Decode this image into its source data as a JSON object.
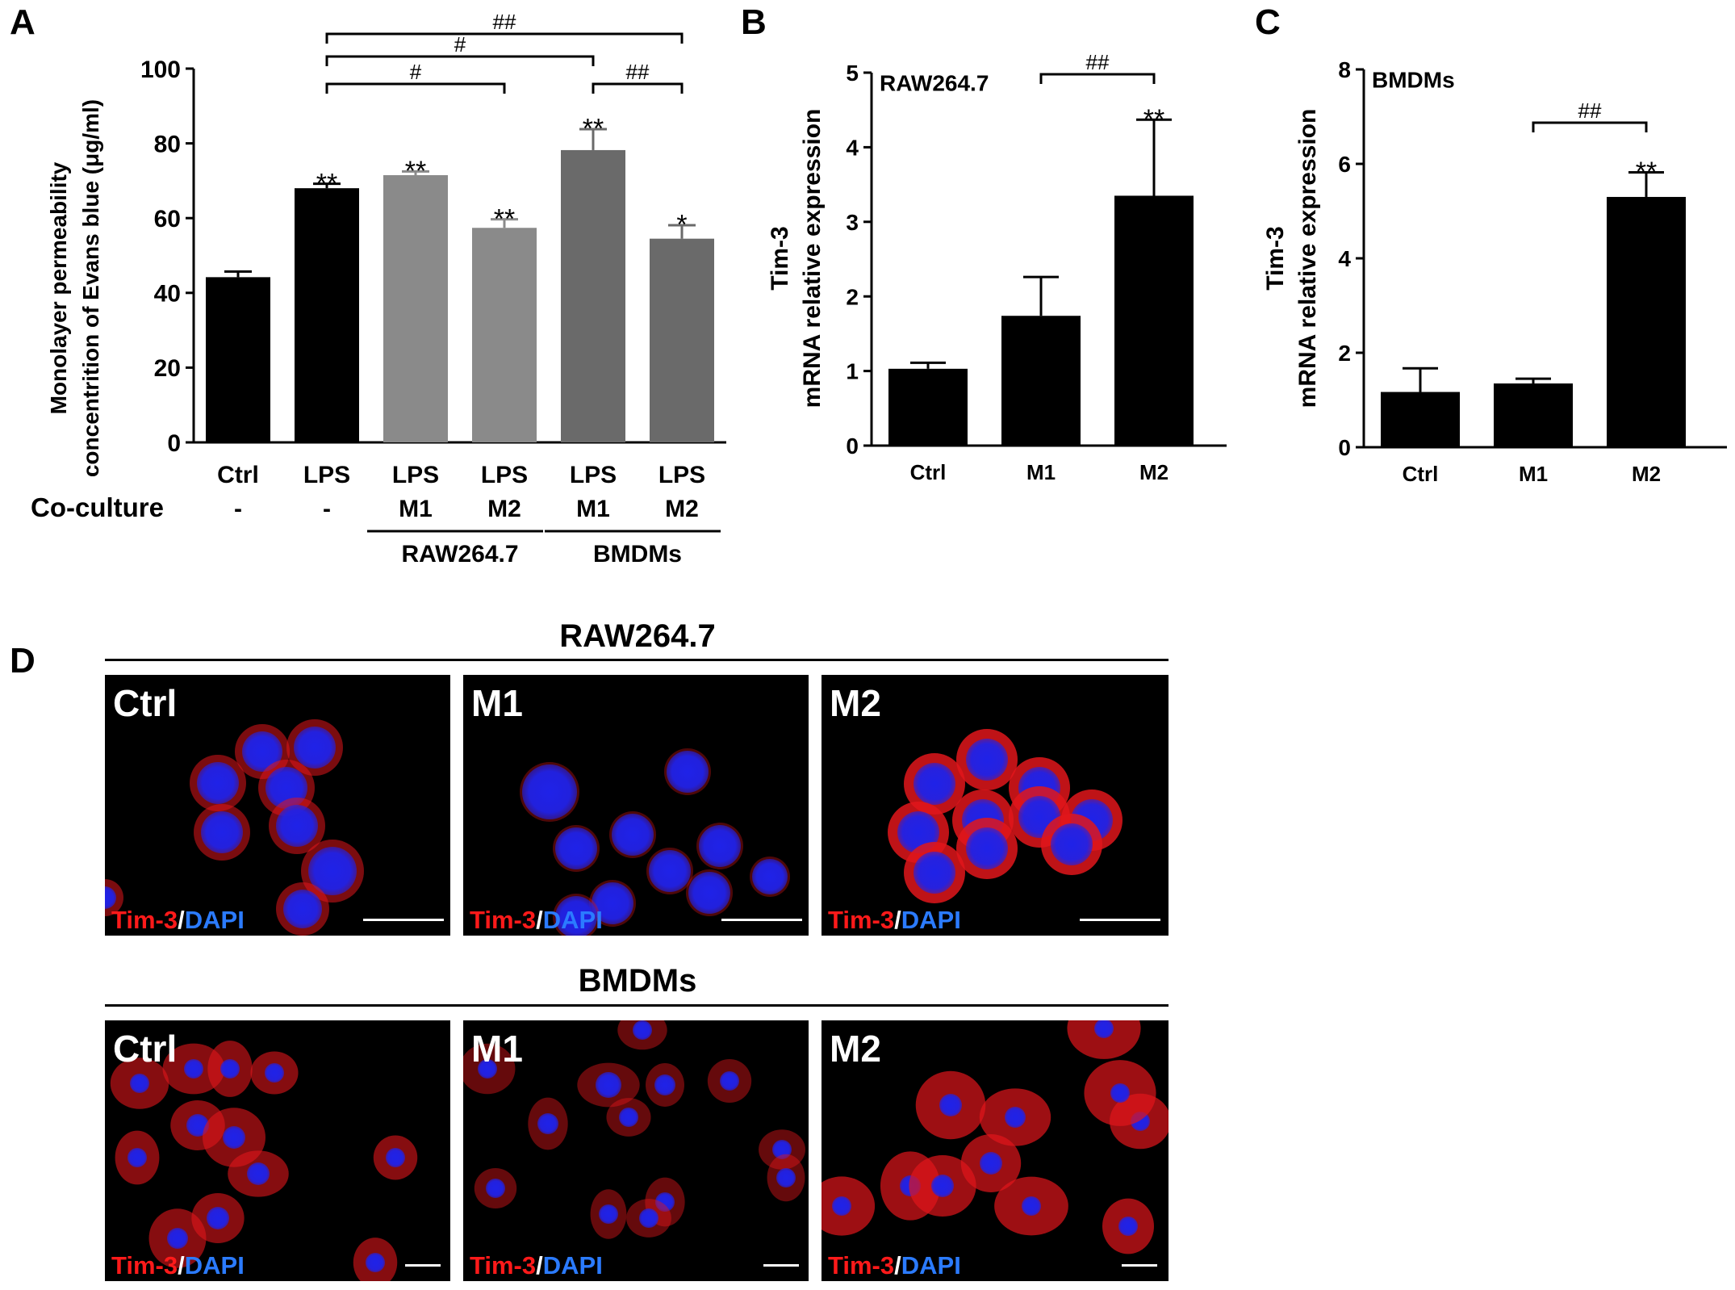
{
  "panel_letters": {
    "a": "A",
    "b": "B",
    "c": "C",
    "d": "D"
  },
  "chart_data": [
    {
      "type": "bar",
      "panel": "A",
      "ylabel_line1": "Monolayer permeability",
      "ylabel_line2": "concentrition of Evans blue (μg/ml)",
      "ylim": [
        0,
        100
      ],
      "yticks": [
        "0",
        "20",
        "40",
        "60",
        "80",
        "100"
      ],
      "categories": [
        "LPS",
        "LPS",
        "LPS",
        "LPS",
        "LPS",
        "LPS"
      ],
      "category_first": "Ctrl",
      "values": [
        44.2,
        68.0,
        71.5,
        57.4,
        78.2,
        54.5
      ],
      "errors": [
        1.5,
        1.2,
        1.0,
        2.3,
        5.6,
        3.6
      ],
      "bar_colors": [
        "#000000",
        "#000000",
        "#8a8a8a",
        "#8a8a8a",
        "#6a6a6a",
        "#6a6a6a"
      ],
      "significance": [
        "",
        "**",
        "**",
        "**",
        "**",
        "*"
      ],
      "coculture_label": "Co-culture",
      "coculture_values": [
        "-",
        "-",
        "M1",
        "M2",
        "M1",
        "M2"
      ],
      "groups": [
        "RAW264.7",
        "BMDMs"
      ],
      "brackets": [
        {
          "from": 1,
          "to": 3,
          "label": "#"
        },
        {
          "from": 1,
          "to": 4,
          "label": "#"
        },
        {
          "from": 1,
          "to": 5,
          "label": "##"
        },
        {
          "from": 4,
          "to": 5,
          "label": "##"
        }
      ]
    },
    {
      "type": "bar",
      "panel": "B",
      "ylabel_line1": "Tim-3",
      "ylabel_line2": "mRNA relative expression",
      "inset_label": "RAW264.7",
      "ylim": [
        0,
        5
      ],
      "yticks": [
        "0",
        "1",
        "2",
        "3",
        "4",
        "5"
      ],
      "categories": [
        "Ctrl",
        "M1",
        "M2"
      ],
      "values": [
        1.03,
        1.74,
        3.35
      ],
      "errors": [
        0.08,
        0.52,
        1.02
      ],
      "significance": [
        "",
        "",
        "**"
      ],
      "brackets": [
        {
          "from": 1,
          "to": 2,
          "label": "##"
        }
      ]
    },
    {
      "type": "bar",
      "panel": "C",
      "ylabel_line1": "Tim-3",
      "ylabel_line2": "mRNA relative expression",
      "inset_label": "BMDMs",
      "ylim": [
        0,
        8
      ],
      "yticks": [
        "0",
        "2",
        "4",
        "6",
        "8"
      ],
      "categories": [
        "Ctrl",
        "M1",
        "M2"
      ],
      "values": [
        1.17,
        1.35,
        5.3
      ],
      "errors": [
        0.5,
        0.1,
        0.52
      ],
      "significance": [
        "",
        "",
        "**"
      ],
      "brackets": [
        {
          "from": 1,
          "to": 2,
          "label": "##"
        }
      ]
    }
  ],
  "micrographs": {
    "rows": [
      {
        "title": "RAW264.7",
        "panels": [
          "Ctrl",
          "M1",
          "M2"
        ]
      },
      {
        "title": "BMDMs",
        "panels": [
          "Ctrl",
          "M1",
          "M2"
        ]
      }
    ],
    "stain_red": "Tim-3",
    "stain_slash": "/",
    "stain_blue": "DAPI",
    "colors": {
      "membrane": "#e0161b",
      "nucleus": "#1f22e8",
      "background": "#000000"
    }
  }
}
